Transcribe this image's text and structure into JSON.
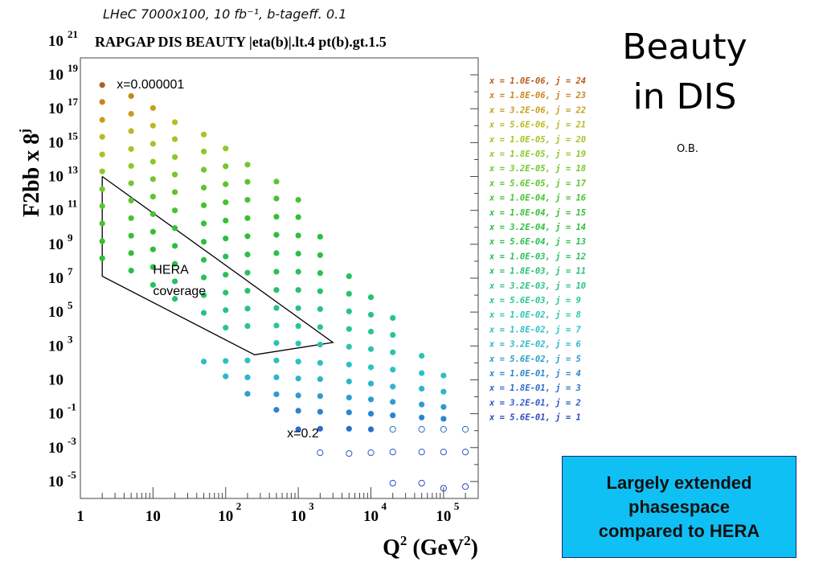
{
  "header": {
    "top_line": "LHeC 7000x100,  10 fb⁻¹,    b-tageff. 0.1",
    "sub_line": "RAPGAP DIS  BEAUTY |eta(b)|.lt.4   pt(b).gt.1.5"
  },
  "slide": {
    "title_line1": "Beauty",
    "title_line2": "in DIS",
    "author": "O.B."
  },
  "callout": {
    "text": "Largely extended\nphasespace\ncompared to HERA",
    "color": "#0fc0f4"
  },
  "chart_data": {
    "type": "scatter",
    "xlabel": "Q",
    "xlabel_sup": "2",
    "xlabel_unit": "(GeV",
    "xlabel_unit_sup": "2",
    "xlabel_close": ")",
    "ylabel": "F2bb x 8",
    "ylabel_sup": "j",
    "x_scale": "log",
    "y_scale": "log",
    "xlim": [
      1,
      300000
    ],
    "ylim": [
      1e-06,
      100000000000000000000
    ],
    "x_ticks": [
      {
        "value": 1,
        "base": "1",
        "exp": ""
      },
      {
        "value": 10,
        "base": "10",
        "exp": ""
      },
      {
        "value": 100,
        "base": "10",
        "exp": "2"
      },
      {
        "value": 1000,
        "base": "10",
        "exp": "3"
      },
      {
        "value": 10000,
        "base": "10",
        "exp": "4"
      },
      {
        "value": 100000,
        "base": "10",
        "exp": "5"
      }
    ],
    "y_ticks": [
      {
        "value": 1e-05,
        "base": "10",
        "exp": "-5"
      },
      {
        "value": 0.001,
        "base": "10",
        "exp": "-3"
      },
      {
        "value": 0.1,
        "base": "10",
        "exp": "-1"
      },
      {
        "value": 10,
        "base": "10",
        "exp": ""
      },
      {
        "value": 1000,
        "base": "10",
        "exp": "3"
      },
      {
        "value": 100000,
        "base": "10",
        "exp": "5"
      },
      {
        "value": 10000000,
        "base": "10",
        "exp": "7"
      },
      {
        "value": 1000000000,
        "base": "10",
        "exp": "9"
      },
      {
        "value": 100000000000,
        "base": "10",
        "exp": "11"
      },
      {
        "value": 10000000000000,
        "base": "10",
        "exp": "13"
      },
      {
        "value": 1000000000000000,
        "base": "10",
        "exp": "15"
      },
      {
        "value": 100000000000000000,
        "base": "10",
        "exp": "17"
      },
      {
        "value": 10000000000000000000,
        "base": "10",
        "exp": "19"
      },
      {
        "value": 1000000000000000000000,
        "base": "10",
        "exp": "21"
      }
    ],
    "q2_grid": [
      2,
      5,
      10,
      20,
      50,
      100,
      200,
      500,
      1000,
      2000,
      5000,
      10000,
      20000,
      50000,
      100000,
      200000
    ],
    "annotations": [
      {
        "text": "x=0.000001",
        "x": 2,
        "y": 1000000000000000000000
      },
      {
        "text": "HERA",
        "x": 10,
        "y": 18000000
      },
      {
        "text": "coverage",
        "x": 10,
        "y": 1000000
      },
      {
        "text": "x=0.2",
        "x": 700,
        "y": 0.004
      }
    ],
    "hera_region": [
      [
        2,
        10000000000000
      ],
      [
        2,
        13000000
      ],
      [
        250,
        300
      ],
      [
        3000,
        1600
      ],
      [
        2,
        10000000000000
      ]
    ],
    "series": [
      {
        "name": "x = 1.0E-06,  j = 24",
        "color": "#b85c1a",
        "points": [
          [
            2,
            2500000000000000000
          ]
        ]
      },
      {
        "name": "x = 1.8E-06,  j = 23",
        "color": "#c8841c",
        "points": [
          [
            2,
            250000000000000000
          ],
          [
            5,
            560000000000000000
          ]
        ]
      },
      {
        "name": "x = 3.2E-06,  j = 22",
        "color": "#c99e1c",
        "points": [
          [
            2,
            22000000000000000
          ],
          [
            5,
            50000000000000000
          ],
          [
            10,
            110000000000000000
          ]
        ]
      },
      {
        "name": "x = 5.6E-06,  j = 21",
        "color": "#b8ba22",
        "points": [
          [
            2,
            2200000000000000
          ],
          [
            5,
            4800000000000000
          ],
          [
            10,
            10000000000000000
          ],
          [
            20,
            16000000000000000
          ]
        ]
      },
      {
        "name": "x = 1.0E-05,  j = 20",
        "color": "#a2c626",
        "points": [
          [
            2,
            200000000000000
          ],
          [
            5,
            420000000000000
          ],
          [
            10,
            850000000000000
          ],
          [
            20,
            1600000000000000
          ],
          [
            50,
            3000000000000000
          ]
        ]
      },
      {
        "name": "x = 1.8E-05,  j = 19",
        "color": "#8cc82a",
        "points": [
          [
            2,
            20000000000000
          ],
          [
            5,
            42000000000000
          ],
          [
            10,
            75000000000000
          ],
          [
            20,
            140000000000000
          ],
          [
            50,
            300000000000000
          ],
          [
            100,
            450000000000000
          ]
        ]
      },
      {
        "name": "x = 3.2E-05,  j = 18",
        "color": "#74c62c",
        "points": [
          [
            2,
            1800000000000
          ],
          [
            5,
            4000000000000
          ],
          [
            10,
            7000000000000
          ],
          [
            20,
            13000000000000
          ],
          [
            50,
            25000000000000
          ],
          [
            100,
            40000000000000
          ],
          [
            200,
            50000000000000
          ]
        ]
      },
      {
        "name": "x = 5.6E-05,  j = 17",
        "color": "#5cc430",
        "points": [
          [
            2,
            180000000000
          ],
          [
            5,
            380000000000
          ],
          [
            10,
            650000000000
          ],
          [
            20,
            1200000000000
          ],
          [
            50,
            2200000000000
          ],
          [
            100,
            3500000000000
          ],
          [
            200,
            4800000000000
          ],
          [
            500,
            5000000000000
          ]
        ]
      },
      {
        "name": "x = 1.0E-04,  j = 16",
        "color": "#46c232",
        "points": [
          [
            2,
            17000000000
          ],
          [
            5,
            35000000000
          ],
          [
            10,
            60000000000
          ],
          [
            20,
            100000000000
          ],
          [
            50,
            200000000000
          ],
          [
            100,
            300000000000
          ],
          [
            200,
            420000000000
          ],
          [
            500,
            500000000000
          ],
          [
            1000,
            420000000000
          ]
        ]
      },
      {
        "name": "x = 1.8E-04,  j = 15",
        "color": "#34c034",
        "points": [
          [
            2,
            1500000000
          ],
          [
            5,
            3200000000
          ],
          [
            10,
            5500000000
          ],
          [
            20,
            9000000000
          ],
          [
            50,
            17000000000
          ],
          [
            100,
            25000000000
          ],
          [
            200,
            35000000000
          ],
          [
            500,
            42000000000
          ],
          [
            1000,
            40000000000
          ]
        ]
      },
      {
        "name": "x = 3.2E-04,  j = 14",
        "color": "#2cbf3c",
        "points": [
          [
            2,
            150000000
          ],
          [
            5,
            300000000
          ],
          [
            10,
            500000000
          ],
          [
            20,
            800000000
          ],
          [
            50,
            1400000000
          ],
          [
            100,
            2200000000
          ],
          [
            200,
            3000000000
          ],
          [
            500,
            3600000000
          ],
          [
            1000,
            3300000000
          ],
          [
            2000,
            2800000000
          ]
        ]
      },
      {
        "name": "x = 5.6E-04,  j = 13",
        "color": "#2abf4c",
        "points": [
          [
            5,
            28000000
          ],
          [
            10,
            45000000
          ],
          [
            20,
            70000000
          ],
          [
            50,
            120000000
          ],
          [
            100,
            190000000
          ],
          [
            200,
            250000000
          ],
          [
            500,
            300000000
          ],
          [
            1000,
            280000000
          ],
          [
            2000,
            230000000
          ]
        ]
      },
      {
        "name": "x = 1.0E-03,  j = 12",
        "color": "#28c05c",
        "points": [
          [
            10,
            4000000
          ],
          [
            20,
            6500000
          ],
          [
            50,
            11000000
          ],
          [
            100,
            16000000
          ],
          [
            200,
            21000000
          ],
          [
            500,
            24000000
          ],
          [
            1000,
            24000000
          ],
          [
            2000,
            20000000
          ],
          [
            5000,
            13000000
          ]
        ]
      },
      {
        "name": "x = 1.8E-03,  j = 11",
        "color": "#28c070",
        "points": [
          [
            20,
            600000
          ],
          [
            50,
            1000000
          ],
          [
            100,
            1400000
          ],
          [
            200,
            1800000
          ],
          [
            500,
            2000000
          ],
          [
            1000,
            2000000
          ],
          [
            2000,
            1700000
          ],
          [
            5000,
            1200000
          ],
          [
            10000,
            750000
          ]
        ]
      },
      {
        "name": "x = 3.2E-03,  j = 10",
        "color": "#28c284",
        "points": [
          [
            50,
            90000
          ],
          [
            100,
            130000
          ],
          [
            200,
            160000
          ],
          [
            500,
            175000
          ],
          [
            1000,
            170000
          ],
          [
            2000,
            150000
          ],
          [
            5000,
            110000
          ],
          [
            10000,
            70000
          ],
          [
            20000,
            45000
          ]
        ]
      },
      {
        "name": "x = 5.6E-03,  j = 9",
        "color": "#28c498",
        "points": [
          [
            100,
            12000
          ],
          [
            200,
            15000
          ],
          [
            500,
            16000
          ],
          [
            1000,
            15000
          ],
          [
            2000,
            13000
          ],
          [
            5000,
            10000
          ],
          [
            10000,
            7000
          ],
          [
            20000,
            4500
          ]
        ]
      },
      {
        "name": "x = 1.0E-02,  j = 8",
        "color": "#2ac4b0",
        "points": [
          [
            500,
            1500
          ],
          [
            1000,
            1400
          ],
          [
            2000,
            1200
          ],
          [
            5000,
            900
          ],
          [
            10000,
            650
          ],
          [
            20000,
            420
          ],
          [
            50000,
            260
          ]
        ]
      },
      {
        "name": "x = 1.8E-02,  j = 7",
        "color": "#2cc0c4",
        "points": [
          [
            50,
            120
          ],
          [
            100,
            130
          ],
          [
            200,
            140
          ],
          [
            500,
            140
          ],
          [
            1000,
            120
          ],
          [
            2000,
            100
          ],
          [
            5000,
            80
          ],
          [
            10000,
            55
          ],
          [
            20000,
            40
          ],
          [
            50000,
            25
          ],
          [
            100000,
            18
          ]
        ]
      },
      {
        "name": "x = 3.2E-02,  j = 6",
        "color": "#2eb4cc",
        "points": [
          [
            100,
            16
          ],
          [
            200,
            14
          ],
          [
            500,
            14
          ],
          [
            1000,
            12
          ],
          [
            2000,
            11
          ],
          [
            5000,
            8
          ],
          [
            10000,
            6
          ],
          [
            20000,
            4
          ],
          [
            50000,
            3
          ],
          [
            100000,
            2
          ]
        ]
      },
      {
        "name": "x = 5.6E-02,  j = 5",
        "color": "#2e9cd0",
        "points": [
          [
            200,
            1.5
          ],
          [
            500,
            1.4
          ],
          [
            1000,
            1.2
          ],
          [
            2000,
            1.1
          ],
          [
            5000,
            0.9
          ],
          [
            10000,
            0.7
          ],
          [
            20000,
            0.5
          ],
          [
            50000,
            0.35
          ],
          [
            100000,
            0.25
          ]
        ]
      },
      {
        "name": "x = 1.0E-01,  j = 4",
        "color": "#2c84d0",
        "points": [
          [
            500,
            0.17
          ],
          [
            1000,
            0.15
          ],
          [
            2000,
            0.13
          ],
          [
            5000,
            0.12
          ],
          [
            10000,
            0.1
          ],
          [
            20000,
            0.08
          ],
          [
            50000,
            0.06
          ],
          [
            100000,
            0.05
          ]
        ]
      },
      {
        "name": "x = 1.8E-01,  j = 3",
        "color": "#2a6ccc",
        "points": [
          [
            1000,
            0.012
          ],
          [
            2000,
            0.013
          ],
          [
            5000,
            0.013
          ],
          [
            10000,
            0.012
          ],
          [
            20000,
            0.012
          ],
          [
            50000,
            0.012
          ],
          [
            100000,
            0.012
          ],
          [
            200000,
            0.012
          ]
        ]
      },
      {
        "name": "x = 3.2E-01,  j = 2",
        "color": "#2a58c8",
        "points": [
          [
            2000,
            0.0005
          ],
          [
            5000,
            0.00045
          ],
          [
            10000,
            0.0005
          ],
          [
            20000,
            0.00055
          ],
          [
            50000,
            0.00055
          ],
          [
            100000,
            0.00055
          ],
          [
            200000,
            0.00055
          ]
        ]
      },
      {
        "name": "x = 5.6E-01,  j = 1",
        "color": "#2c48c4",
        "points": [
          [
            20000,
            8e-06
          ],
          [
            50000,
            8e-06
          ],
          [
            100000,
            4e-06
          ],
          [
            200000,
            5e-06
          ]
        ]
      }
    ]
  }
}
